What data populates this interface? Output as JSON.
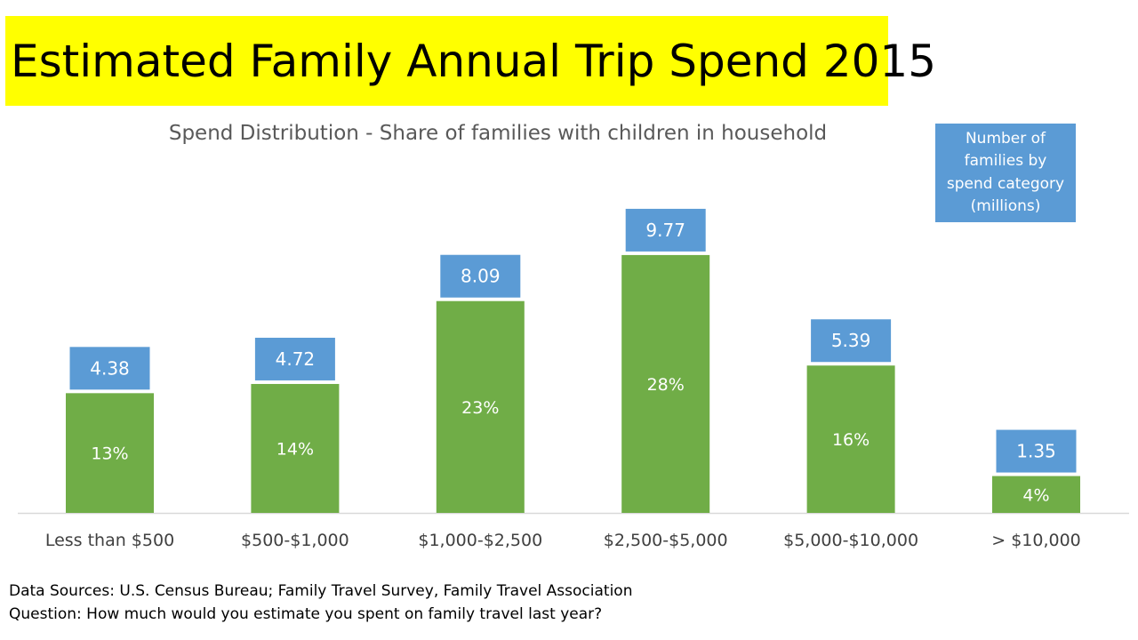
{
  "chart_data": {
    "type": "bar",
    "title": "Estimated Family Annual Trip Spend 2015",
    "subtitle": "Spend Distribution - Share of families with children in household",
    "categories": [
      "Less than $500",
      "$500-$1,000",
      "$1,000-$2,500",
      "$2,500-$5,000",
      "$5,000-$10,000",
      "> $10,000"
    ],
    "values": [
      13,
      14,
      23,
      28,
      16,
      4
    ],
    "value_labels": [
      "13%",
      "14%",
      "23%",
      "28%",
      "16%",
      "4%"
    ],
    "families_millions": [
      4.38,
      4.72,
      8.09,
      9.77,
      5.39,
      1.35
    ],
    "families_labels": [
      "4.38",
      "4.72",
      "8.09",
      "9.77",
      "5.39",
      "1.35"
    ],
    "legend_note": "Number of families by spend category (millions)",
    "ylim": [
      0,
      30
    ],
    "grid": false,
    "colors": {
      "bar": "#70ad47",
      "label_box": "#5b9bd5",
      "title_bg": "#ffff00",
      "axis": "#d9d9d9"
    }
  },
  "footer": {
    "sources": "Data Sources: U.S. Census Bureau; Family Travel Survey, Family Travel Association",
    "question": "Question: How much would you estimate you spent on family travel last year?"
  }
}
